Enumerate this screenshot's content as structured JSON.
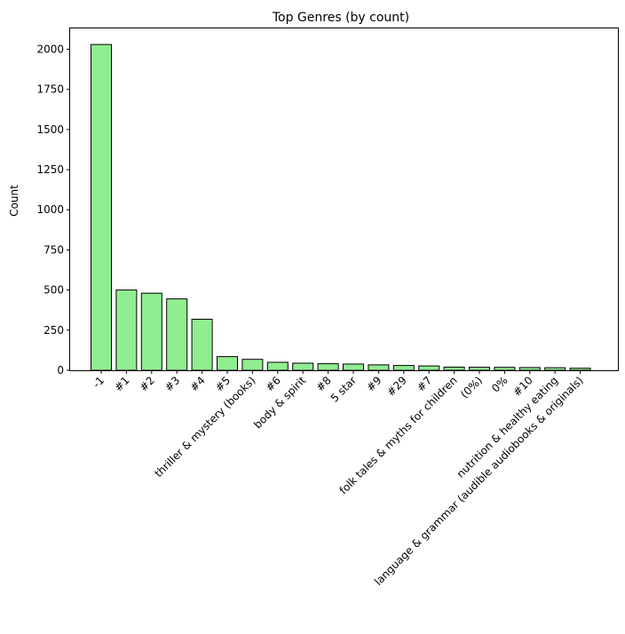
{
  "chart_data": {
    "type": "bar",
    "title": "Top Genres (by count)",
    "xlabel": "",
    "ylabel": "Count",
    "ylim": [
      0,
      2130
    ],
    "yticks": [
      0,
      250,
      500,
      750,
      1000,
      1250,
      1500,
      1750,
      2000
    ],
    "grid": false,
    "colors": {
      "bar_fill": "#90ee90",
      "bar_edge": "#000000"
    },
    "categories": [
      "-1",
      "#1",
      "#2",
      "#3",
      "#4",
      "#5",
      "thriller & mystery (books)",
      "#6",
      "body & spirit",
      "#8",
      "5 star",
      "#9",
      "#29",
      "#7",
      "folk tales & myths for children",
      "(0%)",
      "0%",
      "#10",
      "nutrition & healthy eating",
      "language & grammar (audible audiobooks & originals)"
    ],
    "values": [
      2030,
      500,
      480,
      445,
      318,
      85,
      68,
      50,
      44,
      41,
      39,
      34,
      30,
      27,
      20,
      19,
      18,
      17,
      16,
      13
    ]
  }
}
